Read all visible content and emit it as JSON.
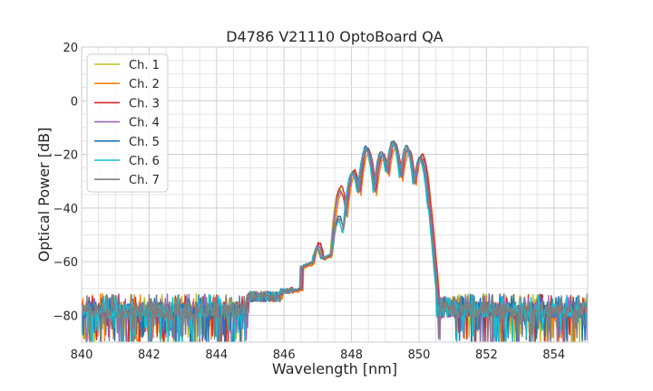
{
  "chart_data": {
    "type": "line",
    "title": "D4786 V21110 OptoBoard QA",
    "xlabel": "Wavelength [nm]",
    "ylabel": "Optical Power [dB]",
    "xlim": [
      840,
      855
    ],
    "ylim": [
      -90,
      20
    ],
    "xticks": [
      840,
      842,
      844,
      846,
      848,
      850,
      852,
      854
    ],
    "yticks": [
      20,
      0,
      -20,
      -40,
      -60,
      -80
    ],
    "x_minor_step": 0.5,
    "y_minor_step": 5,
    "grid": true,
    "legend_position": "upper-left",
    "noise_floor_dB": -80,
    "series": [
      {
        "name": "Ch. 1",
        "color": "#bcbd22",
        "x_shift": 0.0,
        "y_shift": 0.0,
        "peaks": [
          [
            847.0,
            -54
          ],
          [
            847.65,
            -33
          ],
          [
            848.05,
            -26
          ],
          [
            848.45,
            -18
          ],
          [
            848.9,
            -20
          ],
          [
            849.25,
            -16
          ],
          [
            849.65,
            -18
          ],
          [
            850.05,
            -21
          ]
        ]
      },
      {
        "name": "Ch. 2",
        "color": "#ff7f0e",
        "x_shift": 0.06,
        "y_shift": -0.5,
        "peaks": [
          [
            847.0,
            -53
          ],
          [
            847.65,
            -34
          ],
          [
            848.05,
            -27
          ],
          [
            848.45,
            -19
          ],
          [
            848.9,
            -21
          ],
          [
            849.25,
            -17
          ],
          [
            849.65,
            -19
          ],
          [
            850.05,
            -20
          ]
        ]
      },
      {
        "name": "Ch. 3",
        "color": "#d62728",
        "x_shift": 0.04,
        "y_shift": 0.0,
        "peaks": [
          [
            847.0,
            -53
          ],
          [
            847.65,
            -32
          ],
          [
            848.05,
            -26
          ],
          [
            848.45,
            -18
          ],
          [
            848.9,
            -20
          ],
          [
            849.25,
            -16
          ],
          [
            849.65,
            -18
          ],
          [
            850.05,
            -20
          ]
        ]
      },
      {
        "name": "Ch. 4",
        "color": "#9467bd",
        "x_shift": 0.02,
        "y_shift": 0.0,
        "peaks": [
          [
            847.0,
            -54
          ],
          [
            847.65,
            -34
          ],
          [
            848.05,
            -27
          ],
          [
            848.45,
            -18
          ],
          [
            848.9,
            -20
          ],
          [
            849.25,
            -16
          ],
          [
            849.65,
            -18
          ],
          [
            850.05,
            -21
          ]
        ]
      },
      {
        "name": "Ch. 5",
        "color": "#1f77b4",
        "x_shift": -0.02,
        "y_shift": 0.0,
        "peaks": [
          [
            847.0,
            -55
          ],
          [
            847.65,
            -43
          ],
          [
            848.05,
            -27
          ],
          [
            848.45,
            -17
          ],
          [
            848.9,
            -19
          ],
          [
            849.25,
            -15
          ],
          [
            849.65,
            -17
          ],
          [
            850.05,
            -21
          ]
        ]
      },
      {
        "name": "Ch. 6",
        "color": "#17becf",
        "x_shift": -0.04,
        "y_shift": 0.0,
        "peaks": [
          [
            847.0,
            -55
          ],
          [
            847.65,
            -45
          ],
          [
            848.05,
            -27
          ],
          [
            848.45,
            -18
          ],
          [
            848.9,
            -20
          ],
          [
            849.25,
            -16
          ],
          [
            849.65,
            -18
          ],
          [
            850.05,
            -22
          ]
        ]
      },
      {
        "name": "Ch. 7",
        "color": "#7f7f7f",
        "x_shift": -0.01,
        "y_shift": 0.0,
        "peaks": [
          [
            847.0,
            -55
          ],
          [
            847.65,
            -44
          ],
          [
            848.05,
            -27
          ],
          [
            848.45,
            -18
          ],
          [
            848.9,
            -19
          ],
          [
            849.25,
            -15
          ],
          [
            849.65,
            -17
          ],
          [
            850.05,
            -21
          ]
        ]
      }
    ]
  }
}
